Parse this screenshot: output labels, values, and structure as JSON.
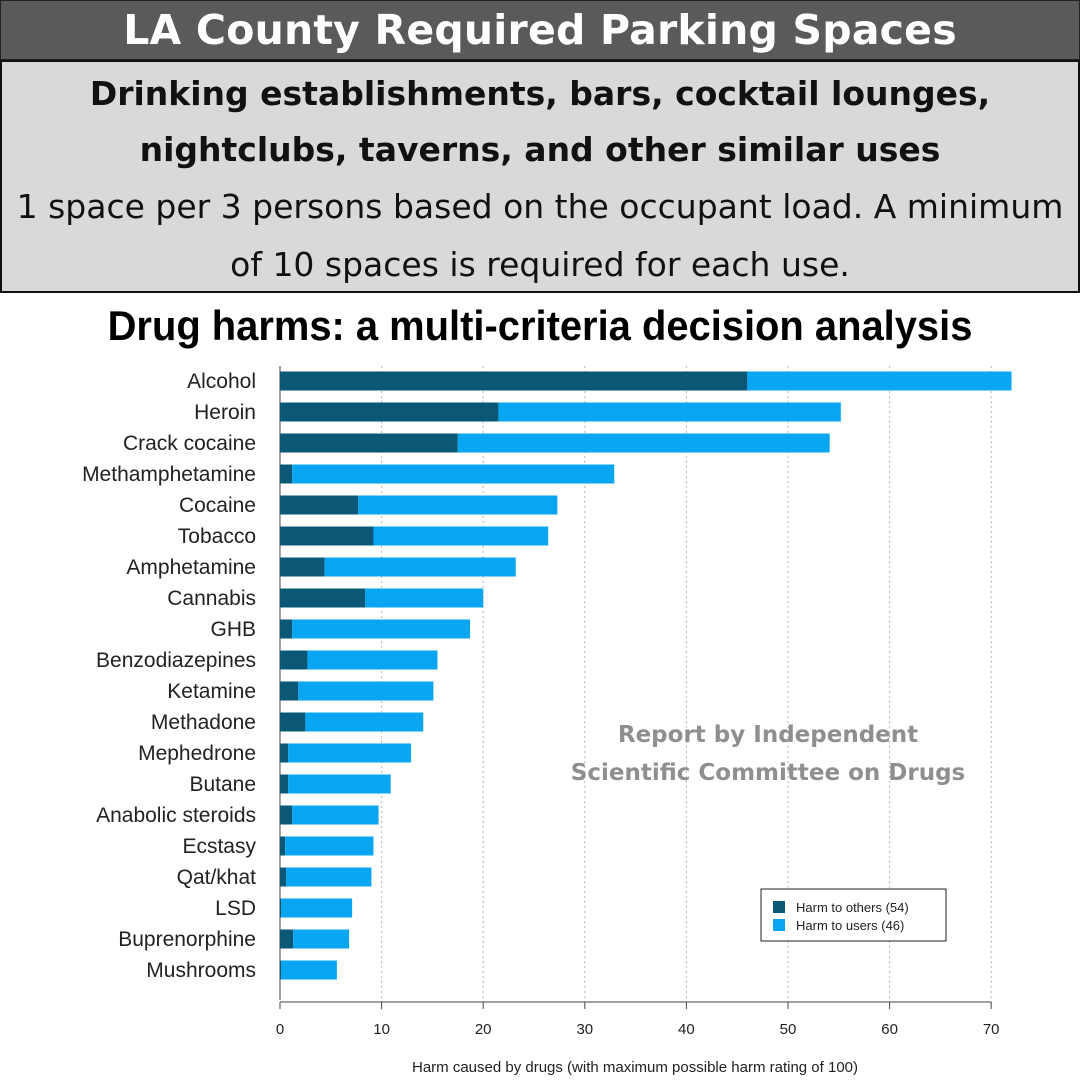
{
  "banner": {
    "title": "LA County Required Parking Spaces"
  },
  "rule": {
    "heading": "Drinking establishments, bars, cocktail lounges, nightclubs, taverns, and other similar uses",
    "body": "1 space per 3 persons based on the occupant load. A minimum of 10 spaces is required for each use."
  },
  "note": {
    "line1": "Report by Independent",
    "line2": "Scientific Committee on Drugs"
  },
  "colors": {
    "others": "#0a5875",
    "users": "#08a6f0",
    "grid": "#b5b5b5"
  },
  "chart_data": {
    "type": "bar",
    "orientation": "horizontal",
    "stacked": true,
    "title": "Drug harms: a multi-criteria decision analysis",
    "xlabel": "Harm caused by drugs (with maximum possible harm rating of 100)",
    "ylabel": "",
    "xlim": [
      0,
      72
    ],
    "xticks": [
      0,
      10,
      20,
      30,
      40,
      50,
      60,
      70
    ],
    "grid": "vertical dotted",
    "legend_position": "lower-right",
    "categories": [
      "Alcohol",
      "Heroin",
      "Crack cocaine",
      "Methamphetamine",
      "Cocaine",
      "Tobacco",
      "Amphetamine",
      "Cannabis",
      "GHB",
      "Benzodiazepines",
      "Ketamine",
      "Methadone",
      "Mephedrone",
      "Butane",
      "Anabolic steroids",
      "Ecstasy",
      "Qat/khat",
      "LSD",
      "Buprenorphine",
      "Mushrooms"
    ],
    "series": [
      {
        "name": "Harm to others (54)",
        "values": [
          46,
          21.5,
          17.5,
          1.2,
          7.7,
          9.2,
          4.4,
          8.4,
          1.2,
          2.7,
          1.8,
          2.5,
          0.8,
          0.8,
          1.2,
          0.5,
          0.6,
          0.1,
          1.3,
          0.1
        ]
      },
      {
        "name": "Harm to users (46)",
        "values": [
          26,
          33.7,
          36.6,
          31.7,
          19.6,
          17.2,
          18.8,
          11.6,
          17.5,
          12.8,
          13.3,
          11.6,
          12.1,
          10.1,
          8.5,
          8.7,
          8.4,
          7.0,
          5.5,
          5.5
        ]
      }
    ]
  }
}
